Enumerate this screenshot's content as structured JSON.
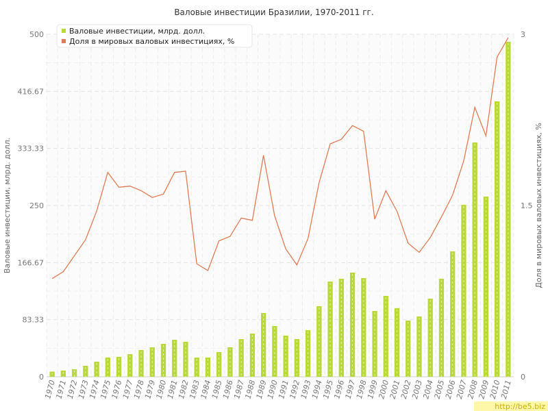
{
  "chart_data": {
    "type": "bar",
    "title": "Валовые инвестиции Бразилии, 1970-2011 гг.",
    "ylabel": "Валовые инвестиции, млрд. долл.",
    "y2label": "Доля в мировых валовых инвестициях, %",
    "ylim": [
      0,
      500
    ],
    "y2lim": [
      0,
      3
    ],
    "yticks": [
      "0",
      "83.33",
      "166.67",
      "250",
      "333.33",
      "416.67",
      "500"
    ],
    "y2ticks": [
      "0",
      "1.5",
      "3"
    ],
    "grid": true,
    "legend_position": "top-left",
    "categories": [
      "1970",
      "1971",
      "1972",
      "1973",
      "1974",
      "1975",
      "1976",
      "1977",
      "1978",
      "1979",
      "1980",
      "1981",
      "1982",
      "1983",
      "1984",
      "1985",
      "1986",
      "1987",
      "1988",
      "1989",
      "1990",
      "1991",
      "1992",
      "1993",
      "1994",
      "1995",
      "1996",
      "1997",
      "1998",
      "1999",
      "2000",
      "2001",
      "2002",
      "2003",
      "2004",
      "2005",
      "2006",
      "2007",
      "2008",
      "2009",
      "2010",
      "2011"
    ],
    "series": [
      {
        "name": "Валовые инвестиции, млрд. долл.",
        "kind": "bar",
        "axis": "left",
        "color": "#b9d93a",
        "values": [
          7.5,
          9,
          11,
          16,
          22,
          28,
          29,
          33,
          39,
          43,
          48,
          54,
          51,
          28,
          28,
          36,
          43,
          55,
          63,
          93,
          74,
          60,
          55,
          68,
          103,
          139,
          143,
          152,
          144,
          96,
          118,
          100,
          82,
          88,
          114,
          143,
          183,
          251,
          342,
          263,
          402,
          489
        ]
      },
      {
        "name": "Доля в мировых валовых инвестициях, %",
        "kind": "line",
        "axis": "right",
        "color": "#e07b53",
        "values": [
          0.86,
          0.92,
          1.06,
          1.2,
          1.45,
          1.79,
          1.66,
          1.67,
          1.63,
          1.57,
          1.6,
          1.79,
          1.8,
          0.99,
          0.93,
          1.19,
          1.23,
          1.39,
          1.37,
          1.94,
          1.41,
          1.12,
          0.98,
          1.21,
          1.7,
          2.04,
          2.08,
          2.2,
          2.15,
          1.38,
          1.63,
          1.45,
          1.17,
          1.09,
          1.22,
          1.4,
          1.59,
          1.89,
          2.36,
          2.11,
          2.8,
          2.97
        ]
      }
    ]
  },
  "watermark": "http://be5.biz"
}
